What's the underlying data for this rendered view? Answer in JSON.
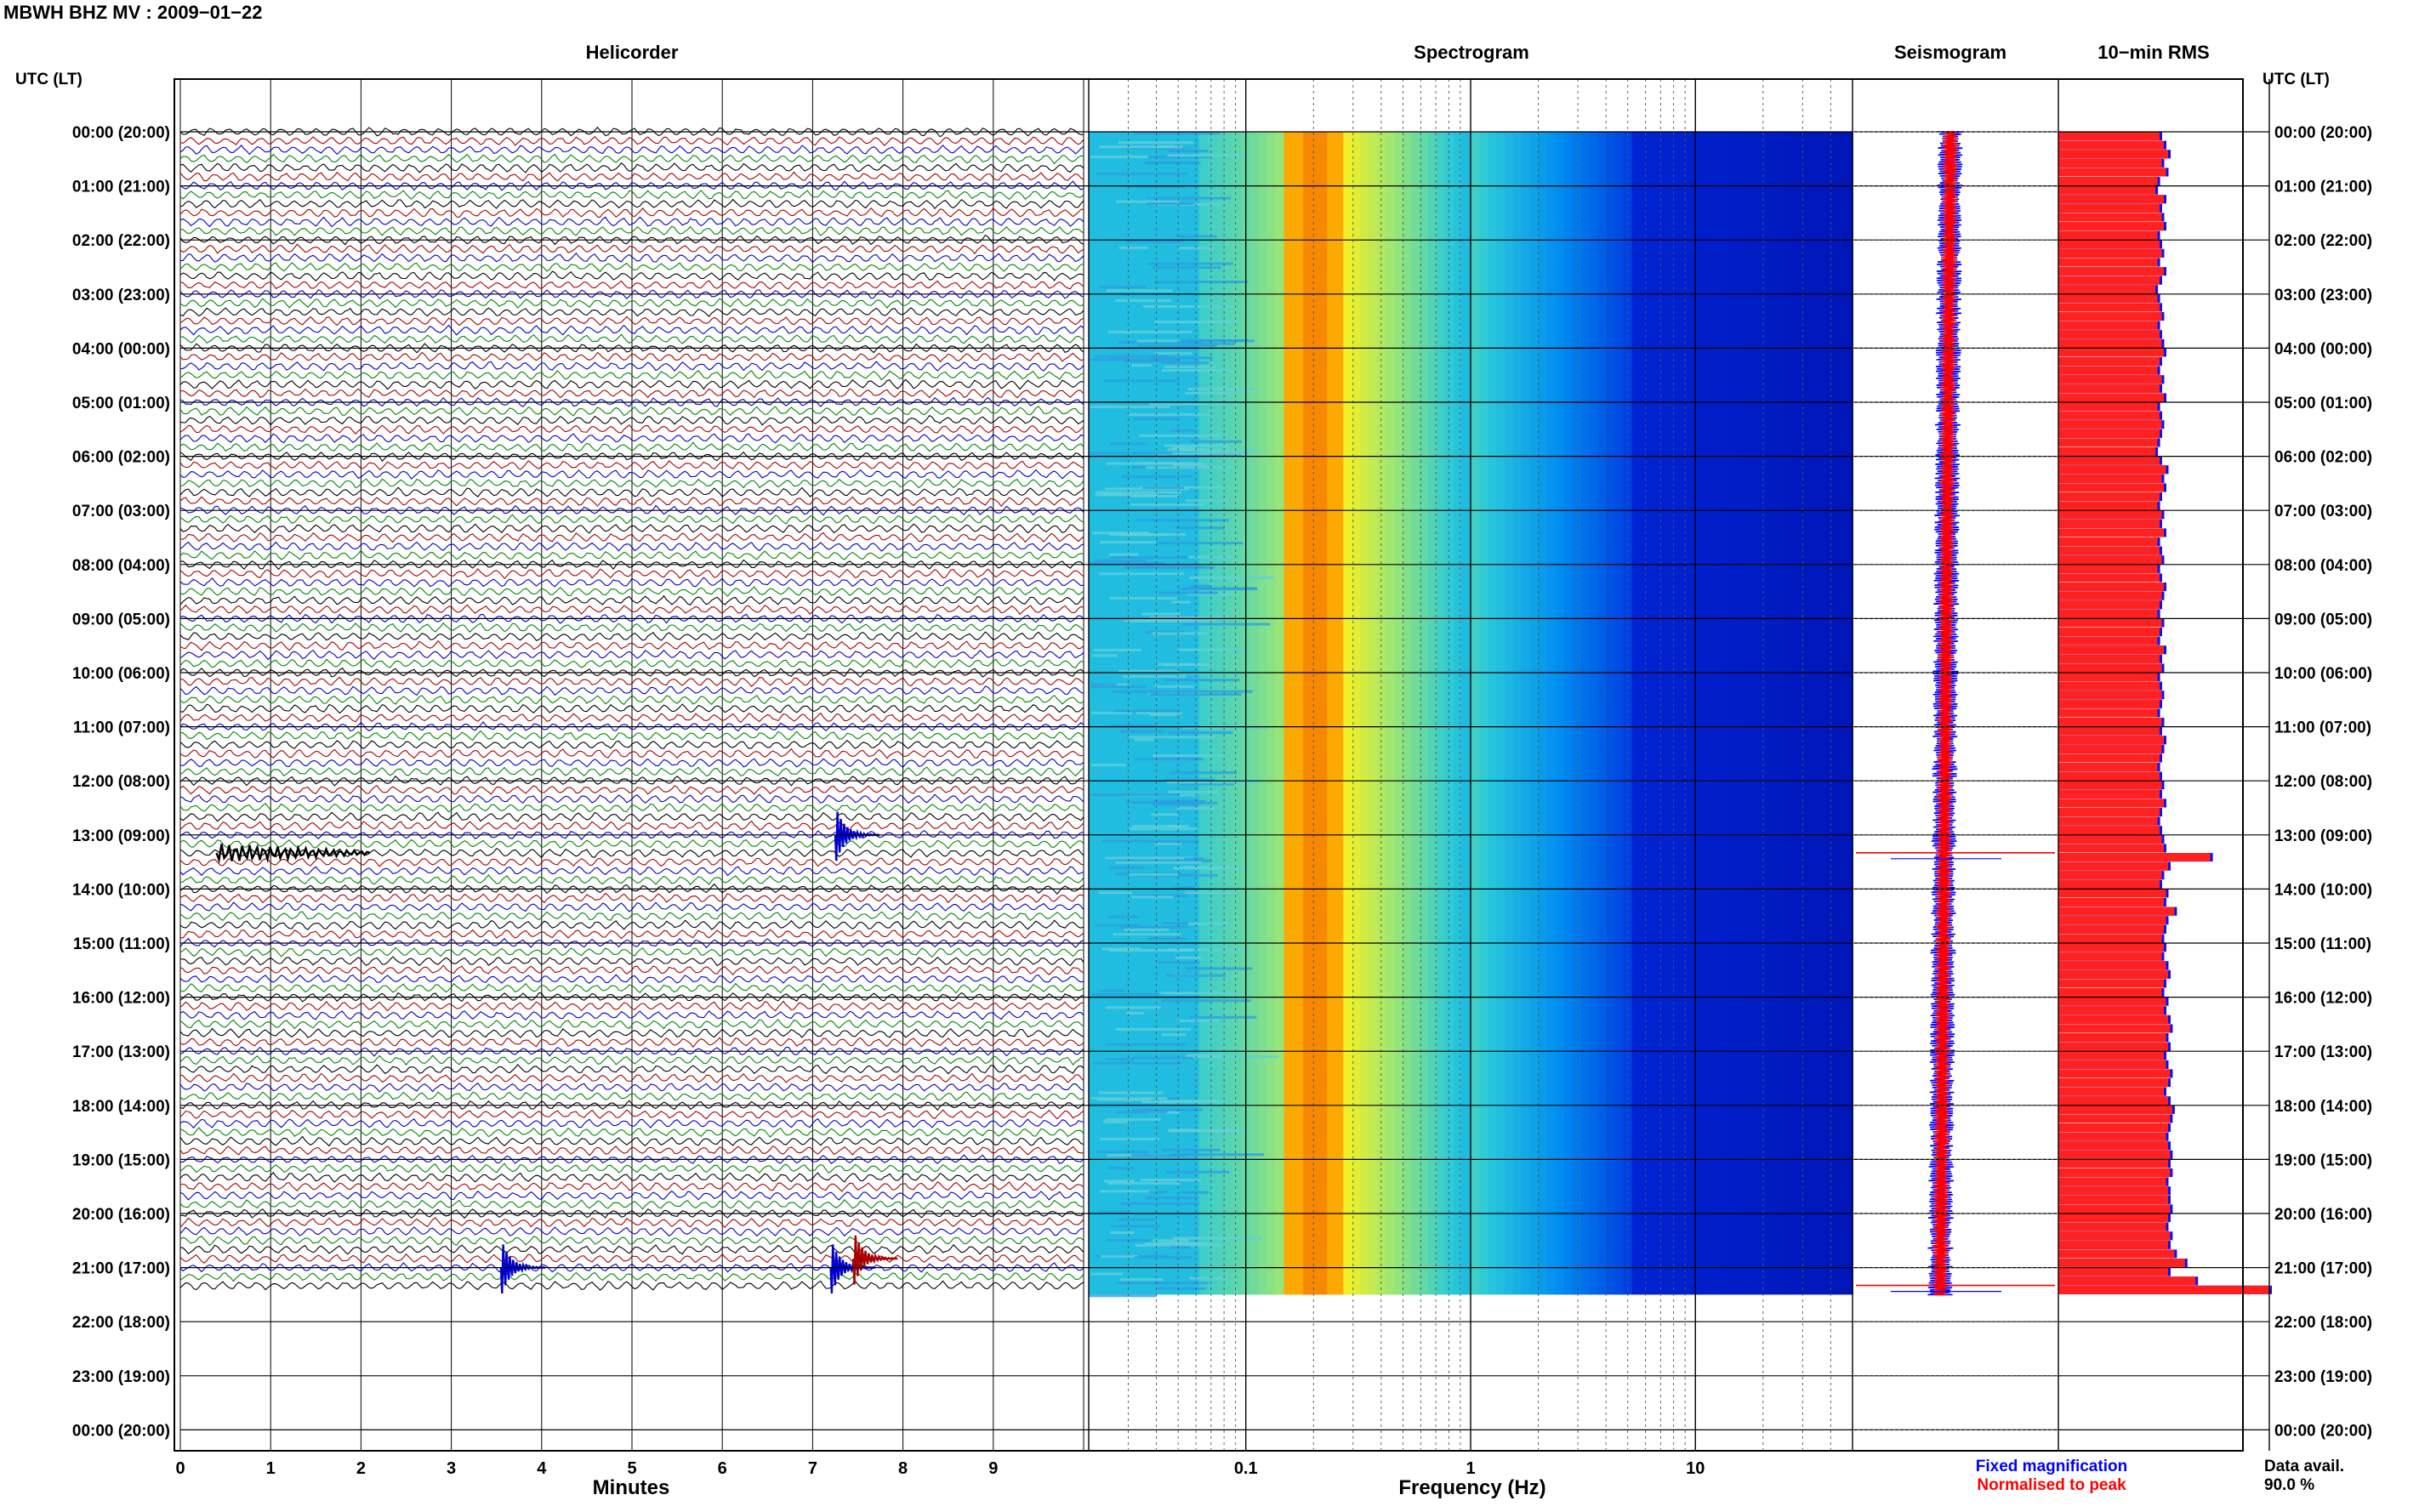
{
  "header": {
    "title": "MBWH BHZ MV : 2009−01−22"
  },
  "panels": {
    "helicorder": "Helicorder",
    "spectrogram": "Spectrogram",
    "seismogram": "Seismogram",
    "rms": "10−min RMS"
  },
  "axes": {
    "utc_label": "UTC (LT)",
    "minutes_label": "Minutes",
    "frequency_label": "Frequency (Hz)"
  },
  "legend": {
    "fixed": "Fixed magnification",
    "normalised": "Normalised to peak",
    "fixed_color": "#0000ff",
    "normalised_color": "#ff0000"
  },
  "data_avail": {
    "label": "Data avail.",
    "value": "90.0 %"
  },
  "colors": {
    "trace_black": "#000000",
    "trace_red": "#aa0000",
    "trace_blue": "#0000cc",
    "trace_green": "#008800",
    "rms_fill": "#ff2020",
    "rms_edge": "#1010ee"
  },
  "chart_data": [
    {
      "type": "line",
      "panel": "Helicorder",
      "xlabel": "Minutes",
      "x_ticks": [
        "0",
        "1",
        "2",
        "3",
        "4",
        "5",
        "6",
        "7",
        "8",
        "9"
      ],
      "xlim": [
        0,
        10
      ],
      "row_minutes": 10,
      "trace_color_cycle": [
        "black",
        "red",
        "blue",
        "green"
      ],
      "data_end_hour": 21.5,
      "y_ticks_left": [
        "00:00 (20:00)",
        "01:00 (21:00)",
        "02:00 (22:00)",
        "03:00 (23:00)",
        "04:00 (00:00)",
        "05:00 (01:00)",
        "06:00 (02:00)",
        "07:00 (03:00)",
        "08:00 (04:00)",
        "09:00 (05:00)",
        "10:00 (06:00)",
        "11:00 (07:00)",
        "12:00 (08:00)",
        "13:00 (09:00)",
        "14:00 (10:00)",
        "15:00 (11:00)",
        "16:00 (12:00)",
        "17:00 (13:00)",
        "18:00 (14:00)",
        "19:00 (15:00)",
        "20:00 (16:00)",
        "21:00 (17:00)",
        "22:00 (18:00)",
        "23:00 (19:00)",
        "00:00 (20:00)"
      ],
      "events": [
        {
          "hour": 13.33,
          "minute": 0.4,
          "note": "long red transient"
        },
        {
          "hour": 13.0,
          "minute": 7.25,
          "note": "green spike"
        },
        {
          "hour": 21.0,
          "minute": 7.2,
          "note": "green spike"
        },
        {
          "hour": 21.0,
          "minute": 3.55,
          "note": "green spike"
        },
        {
          "hour": 20.83,
          "minute": 7.45,
          "note": "blue spike"
        }
      ]
    },
    {
      "type": "heatmap",
      "panel": "Spectrogram",
      "xlabel": "Frequency (Hz)",
      "x_scale": "log",
      "xlim": [
        0.02,
        50
      ],
      "x_ticks": [
        "0.1",
        "1",
        "10"
      ],
      "peak_frequency_hz": 0.2,
      "data_end_hour": 21.5
    },
    {
      "type": "line",
      "panel": "Seismogram",
      "series": [
        {
          "name": "Fixed magnification",
          "color": "#0000ff"
        },
        {
          "name": "Normalised to peak",
          "color": "#ff0000"
        }
      ],
      "spikes_hour": [
        13.33,
        21.33
      ],
      "data_end_hour": 21.5
    },
    {
      "type": "bar",
      "panel": "10−min RMS",
      "orientation": "horizontal",
      "bin_minutes": 10,
      "data_end_hour": 21.5,
      "values_relative": [
        0.48,
        0.5,
        0.52,
        0.49,
        0.51,
        0.47,
        0.46,
        0.5,
        0.48,
        0.49,
        0.5,
        0.47,
        0.48,
        0.49,
        0.47,
        0.5,
        0.48,
        0.46,
        0.47,
        0.48,
        0.49,
        0.47,
        0.48,
        0.49,
        0.5,
        0.48,
        0.47,
        0.49,
        0.48,
        0.5,
        0.47,
        0.48,
        0.49,
        0.48,
        0.47,
        0.46,
        0.48,
        0.51,
        0.49,
        0.5,
        0.48,
        0.47,
        0.49,
        0.48,
        0.5,
        0.47,
        0.48,
        0.49,
        0.47,
        0.48,
        0.5,
        0.49,
        0.48,
        0.47,
        0.49,
        0.48,
        0.47,
        0.5,
        0.48,
        0.49,
        0.47,
        0.48,
        0.49,
        0.48,
        0.47,
        0.49,
        0.48,
        0.5,
        0.49,
        0.48,
        0.47,
        0.48,
        0.49,
        0.48,
        0.5,
        0.48,
        0.47,
        0.48,
        0.49,
        0.5,
        0.72,
        0.52,
        0.49,
        0.48,
        0.51,
        0.5,
        0.55,
        0.51,
        0.5,
        0.49,
        0.5,
        0.49,
        0.51,
        0.52,
        0.5,
        0.49,
        0.51,
        0.5,
        0.52,
        0.53,
        0.51,
        0.52,
        0.5,
        0.51,
        0.53,
        0.52,
        0.5,
        0.52,
        0.54,
        0.53,
        0.52,
        0.51,
        0.52,
        0.53,
        0.52,
        0.53,
        0.51,
        0.52,
        0.52,
        0.53,
        0.52,
        0.51,
        0.53,
        0.52,
        0.55,
        0.6,
        0.52,
        0.65,
        1.0
      ]
    }
  ]
}
